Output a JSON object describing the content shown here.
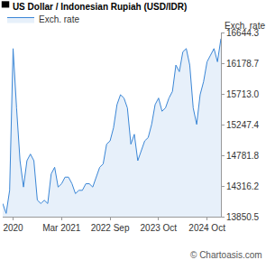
{
  "chart_data": {
    "type": "area",
    "title": "US Dollar / Indonesian Rupiah (USD/IDR)",
    "y_label": "Exch. rate",
    "annotations": [
      "© Chartoasis.com"
    ],
    "categories": [
      null,
      null,
      null,
      "2020",
      null,
      null,
      null,
      null,
      null,
      null,
      null,
      null,
      null,
      null,
      null,
      null,
      null,
      "Mar 2021",
      null,
      null,
      null,
      null,
      null,
      null,
      null,
      null,
      null,
      null,
      null,
      null,
      null,
      "2022 Sep",
      null,
      null,
      null,
      null,
      null,
      null,
      null,
      null,
      null,
      null,
      null,
      null,
      null,
      "2023 Oct",
      null,
      null,
      null,
      null,
      null,
      null,
      null,
      null,
      null,
      null,
      null,
      null,
      null,
      "2024 Oct",
      null,
      null,
      null,
      null
    ],
    "series": [
      {
        "name": "Exch. rate",
        "color": "#3a86d6",
        "values": [
          14050,
          13900,
          14250,
          16400,
          15500,
          14700,
          14300,
          14700,
          14800,
          14700,
          14100,
          14050,
          14100,
          14050,
          14500,
          14600,
          14300,
          14350,
          14450,
          14450,
          14350,
          14200,
          14250,
          14250,
          14350,
          14350,
          14300,
          14450,
          14600,
          14650,
          14950,
          15000,
          15200,
          15550,
          15700,
          15650,
          15500,
          14950,
          15100,
          14700,
          14850,
          15000,
          15050,
          15250,
          15550,
          15650,
          15450,
          15500,
          15650,
          15750,
          16150,
          16050,
          16350,
          16400,
          16150,
          15500,
          15250,
          15700,
          15900,
          16200,
          16300,
          16400,
          16200,
          16550
        ]
      }
    ],
    "ylim": [
      13850.5,
      16644.3
    ],
    "yticks": [
      13850.5,
      14316.2,
      14781.8,
      15247.4,
      {
        "value": 15713.0,
        "label": "15713.0"
      },
      16178.7,
      16644.3
    ],
    "grid": false,
    "legend": "top-left"
  }
}
